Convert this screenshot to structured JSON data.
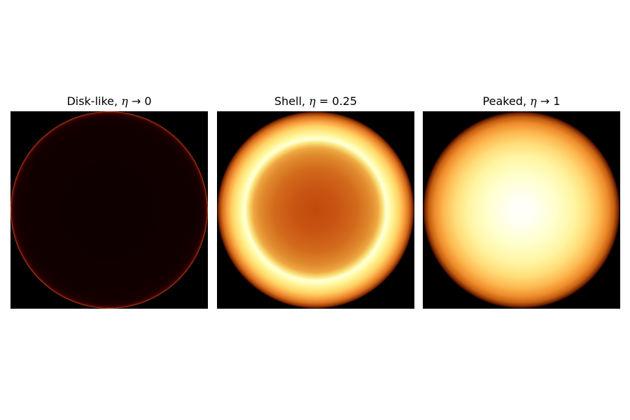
{
  "chart_data": [
    {
      "type": "heatmap",
      "title": {
        "prefix": "Disk-like, ",
        "symbol": "η",
        "relation": " → ",
        "value": "0"
      },
      "colormap": "afmhot",
      "profile": "disk-like (flat interior, bright thin rim)",
      "background_color": "#000000",
      "dominant_color": "#110000",
      "xlabel": "",
      "ylabel": "",
      "ticks": false
    },
    {
      "type": "heatmap",
      "title": {
        "prefix": "Shell, ",
        "symbol": "η",
        "relation": " = ",
        "value": "0.25"
      },
      "colormap": "afmhot",
      "profile": "shell (bright ring around a darker orange core)",
      "background_color": "#000000",
      "dominant_color": "#c85412",
      "xlabel": "",
      "ylabel": "",
      "ticks": false
    },
    {
      "type": "heatmap",
      "title": {
        "prefix": "Peaked, ",
        "symbol": "η",
        "relation": " → ",
        "value": "1"
      },
      "colormap": "afmhot",
      "profile": "peaked (brightest at center, fading toward edge)",
      "background_color": "#000000",
      "dominant_color": "#ffffcc",
      "xlabel": "",
      "ylabel": "",
      "ticks": false
    }
  ]
}
